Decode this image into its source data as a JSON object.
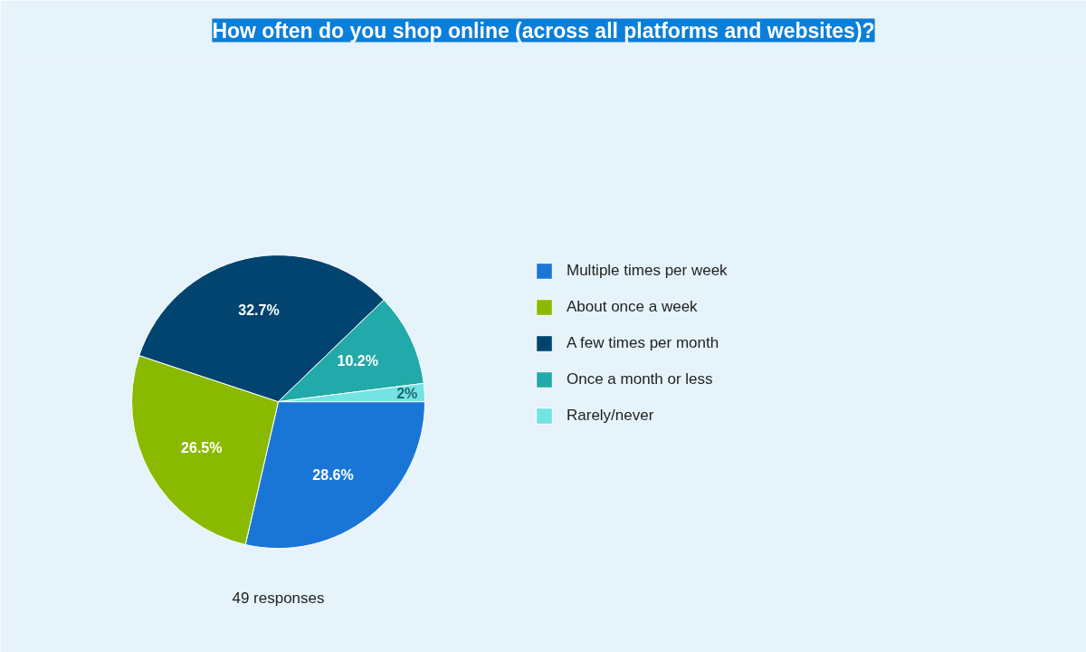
{
  "chart_data": {
    "type": "pie",
    "title": "How often do you shop online (across all platforms and websites)?",
    "categories": [
      "Multiple times per week",
      "About once a week",
      "A few times per month",
      "Once a month or less",
      "Rarely/never"
    ],
    "values": [
      28.6,
      26.5,
      32.7,
      10.2,
      2
    ],
    "colors": [
      "#1976d6",
      "#8aba00",
      "#01446f",
      "#22a9a9",
      "#74e3e3"
    ],
    "value_labels": [
      "28.6%",
      "26.5%",
      "32.7%",
      "10.2%",
      "2%"
    ],
    "annotations": [
      "49 responses"
    ],
    "legend": "right"
  }
}
